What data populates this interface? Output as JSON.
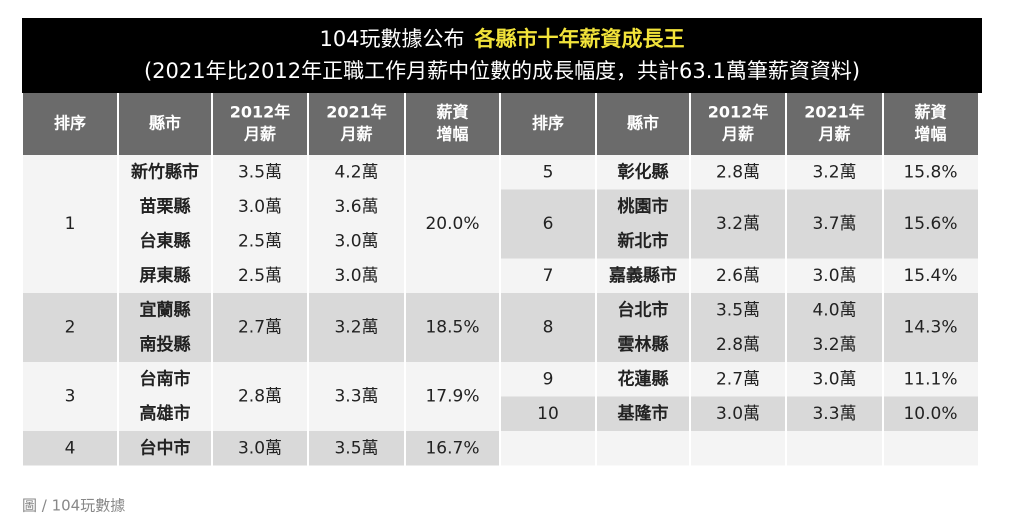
{
  "title": {
    "lead": "104玩數據公布",
    "highlight": "各縣市十年薪資成長王",
    "subtitle": "(2021年比2012年正職工作月薪中位數的成長幅度，共計63.1萬筆薪資資料)"
  },
  "table": {
    "headers": [
      [
        "排序"
      ],
      [
        "縣市"
      ],
      [
        "2012年",
        "月薪"
      ],
      [
        "2021年",
        "月薪"
      ],
      [
        "薪資",
        "增幅"
      ]
    ],
    "left": [
      {
        "rank": "1",
        "cities": [
          "新竹縣市",
          "苗栗縣",
          "台東縣",
          "屏東縣"
        ],
        "salary_2012": [
          "3.5萬",
          "3.0萬",
          "2.5萬",
          "2.5萬"
        ],
        "salary_2021": [
          "4.2萬",
          "3.6萬",
          "3.0萬",
          "3.0萬"
        ],
        "growth": "20.0%"
      },
      {
        "rank": "2",
        "cities": [
          "宜蘭縣",
          "南投縣"
        ],
        "salary_2012": [
          "2.7萬"
        ],
        "salary_2021": [
          "3.2萬"
        ],
        "growth": "18.5%"
      },
      {
        "rank": "3",
        "cities": [
          "台南市",
          "高雄市"
        ],
        "salary_2012": [
          "2.8萬"
        ],
        "salary_2021": [
          "3.3萬"
        ],
        "growth": "17.9%"
      },
      {
        "rank": "4",
        "cities": [
          "台中市"
        ],
        "salary_2012": [
          "3.0萬"
        ],
        "salary_2021": [
          "3.5萬"
        ],
        "growth": "16.7%"
      }
    ],
    "right": [
      {
        "rank": "5",
        "cities": [
          "彰化縣"
        ],
        "salary_2012": [
          "2.8萬"
        ],
        "salary_2021": [
          "3.2萬"
        ],
        "growth": "15.8%"
      },
      {
        "rank": "6",
        "cities": [
          "桃園市",
          "新北市"
        ],
        "salary_2012": [
          "3.2萬"
        ],
        "salary_2021": [
          "3.7萬"
        ],
        "growth": "15.6%"
      },
      {
        "rank": "7",
        "cities": [
          "嘉義縣市"
        ],
        "salary_2012": [
          "2.6萬"
        ],
        "salary_2021": [
          "3.0萬"
        ],
        "growth": "15.4%"
      },
      {
        "rank": "8",
        "cities": [
          "台北市",
          "雲林縣"
        ],
        "salary_2012": [
          "3.5萬",
          "2.8萬"
        ],
        "salary_2021": [
          "4.0萬",
          "3.2萬"
        ],
        "growth": "14.3%"
      },
      {
        "rank": "9",
        "cities": [
          "花蓮縣"
        ],
        "salary_2012": [
          "2.7萬"
        ],
        "salary_2021": [
          "3.0萬"
        ],
        "growth": "11.1%"
      },
      {
        "rank": "10",
        "cities": [
          "基隆市"
        ],
        "salary_2012": [
          "3.0萬"
        ],
        "salary_2021": [
          "3.3萬"
        ],
        "growth": "10.0%"
      }
    ]
  },
  "caption": "圖 / 104玩數據"
}
